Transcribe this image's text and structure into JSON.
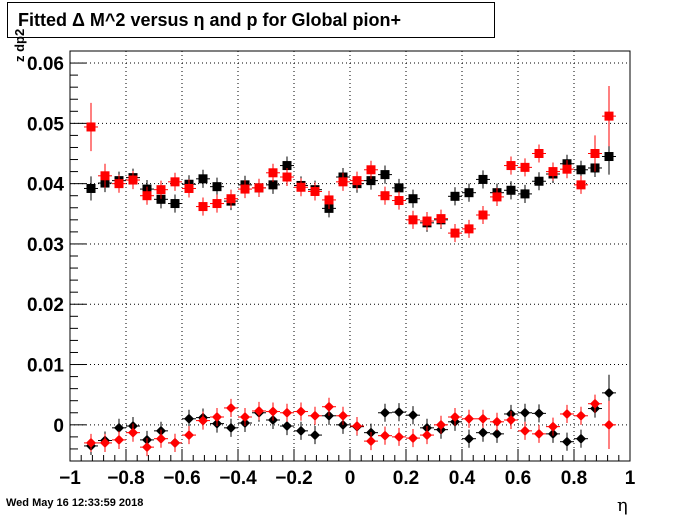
{
  "chart_data": {
    "type": "scatter",
    "title": "Fitted Δ M^2 versus η and p for Global pion+",
    "xlabel": "η",
    "ylabel": "z dp2",
    "xlim": [
      -1,
      1
    ],
    "ylim": [
      -0.006,
      0.062
    ],
    "grid": true,
    "x_ticks": [
      -1,
      -0.8,
      -0.6,
      -0.4,
      -0.2,
      0,
      0.2,
      0.4,
      0.6,
      0.8,
      1
    ],
    "x_tick_labels": [
      "−1",
      "−0.8",
      "−0.6",
      "−0.4",
      "−0.2",
      "0",
      "0.2",
      "0.4",
      "0.6",
      "0.8",
      "1"
    ],
    "y_ticks": [
      0,
      0.01,
      0.02,
      0.03,
      0.04,
      0.05,
      0.06
    ],
    "y_tick_labels": [
      "0",
      "0.01",
      "0.02",
      "0.03",
      "0.04",
      "0.05",
      "0.06"
    ],
    "series": [
      {
        "marker": "square",
        "color": "#000000",
        "x": [
          -0.925,
          -0.875,
          -0.825,
          -0.775,
          -0.725,
          -0.675,
          -0.625,
          -0.575,
          -0.525,
          -0.475,
          -0.425,
          -0.375,
          -0.325,
          -0.275,
          -0.225,
          -0.175,
          -0.125,
          -0.075,
          -0.025,
          0.025,
          0.075,
          0.125,
          0.175,
          0.225,
          0.275,
          0.325,
          0.375,
          0.425,
          0.475,
          0.525,
          0.575,
          0.625,
          0.675,
          0.725,
          0.775,
          0.825,
          0.875,
          0.925
        ],
        "y": [
          0.0392,
          0.0401,
          0.0405,
          0.041,
          0.0391,
          0.0374,
          0.0367,
          0.0399,
          0.0408,
          0.0395,
          0.0371,
          0.0398,
          0.0393,
          0.0398,
          0.043,
          0.0397,
          0.039,
          0.0359,
          0.0411,
          0.04,
          0.0405,
          0.0415,
          0.0393,
          0.0375,
          0.0335,
          0.034,
          0.0379,
          0.0385,
          0.0407,
          0.0385,
          0.0389,
          0.0383,
          0.0404,
          0.0416,
          0.0433,
          0.0423,
          0.0426,
          0.0445
        ],
        "err": [
          0.002,
          0.0015,
          0.0015,
          0.0015,
          0.0015,
          0.0015,
          0.0015,
          0.0015,
          0.0015,
          0.0015,
          0.0015,
          0.0015,
          0.0015,
          0.0015,
          0.0015,
          0.0015,
          0.0015,
          0.0015,
          0.0015,
          0.0015,
          0.0015,
          0.0015,
          0.0015,
          0.0015,
          0.0015,
          0.0015,
          0.0015,
          0.0015,
          0.0015,
          0.0015,
          0.0015,
          0.0015,
          0.0015,
          0.0015,
          0.0015,
          0.0015,
          0.0015,
          0.003
        ]
      },
      {
        "marker": "square",
        "color": "#ff0000",
        "x": [
          -0.925,
          -0.875,
          -0.825,
          -0.775,
          -0.725,
          -0.675,
          -0.625,
          -0.575,
          -0.525,
          -0.475,
          -0.425,
          -0.375,
          -0.325,
          -0.275,
          -0.225,
          -0.175,
          -0.125,
          -0.075,
          -0.025,
          0.025,
          0.075,
          0.125,
          0.175,
          0.225,
          0.275,
          0.325,
          0.375,
          0.425,
          0.475,
          0.525,
          0.575,
          0.625,
          0.675,
          0.725,
          0.775,
          0.825,
          0.875,
          0.925
        ],
        "y": [
          0.0494,
          0.0413,
          0.04,
          0.0406,
          0.038,
          0.039,
          0.0403,
          0.0392,
          0.0362,
          0.0367,
          0.0375,
          0.0391,
          0.0393,
          0.0418,
          0.0411,
          0.0394,
          0.0387,
          0.0373,
          0.0403,
          0.0405,
          0.0423,
          0.038,
          0.0372,
          0.034,
          0.0338,
          0.0342,
          0.0318,
          0.0325,
          0.0348,
          0.0378,
          0.043,
          0.0427,
          0.045,
          0.042,
          0.0424,
          0.0398,
          0.045,
          0.0512
        ],
        "err": [
          0.004,
          0.002,
          0.0015,
          0.0015,
          0.0015,
          0.0015,
          0.0015,
          0.0015,
          0.0015,
          0.0015,
          0.0015,
          0.0015,
          0.0015,
          0.0015,
          0.0015,
          0.0015,
          0.0015,
          0.0015,
          0.0015,
          0.0015,
          0.0015,
          0.0015,
          0.0015,
          0.0015,
          0.0015,
          0.0015,
          0.0015,
          0.0015,
          0.0015,
          0.0015,
          0.0015,
          0.0015,
          0.0015,
          0.0015,
          0.0015,
          0.0015,
          0.003,
          0.005
        ]
      },
      {
        "marker": "diamond",
        "color": "#000000",
        "x": [
          -0.925,
          -0.875,
          -0.825,
          -0.775,
          -0.725,
          -0.675,
          -0.625,
          -0.575,
          -0.525,
          -0.475,
          -0.425,
          -0.375,
          -0.325,
          -0.275,
          -0.225,
          -0.175,
          -0.125,
          -0.075,
          -0.025,
          0.025,
          0.075,
          0.125,
          0.175,
          0.225,
          0.275,
          0.325,
          0.375,
          0.425,
          0.475,
          0.525,
          0.575,
          0.625,
          0.675,
          0.725,
          0.775,
          0.825,
          0.875,
          0.925
        ],
        "y": [
          -0.0035,
          -0.0026,
          -0.0005,
          -0.0002,
          -0.0025,
          -0.001,
          -0.003,
          0.001,
          0.0012,
          0.0002,
          -0.0005,
          0.0003,
          0.002,
          0.0008,
          -0.0002,
          -0.001,
          -0.0017,
          0.0015,
          0.0,
          -0.0003,
          -0.0013,
          0.002,
          0.0021,
          0.0016,
          -0.0005,
          -0.0008,
          0.0005,
          -0.0023,
          -0.0013,
          -0.0015,
          0.0018,
          0.002,
          0.0019,
          -0.0015,
          -0.0028,
          -0.0023,
          0.0027,
          0.0053
        ],
        "err": [
          0.0015,
          0.0015,
          0.0015,
          0.0015,
          0.0015,
          0.0015,
          0.0015,
          0.0015,
          0.0015,
          0.0015,
          0.0015,
          0.0015,
          0.0015,
          0.0015,
          0.0015,
          0.0015,
          0.0015,
          0.0015,
          0.0015,
          0.0015,
          0.0015,
          0.0015,
          0.0015,
          0.0015,
          0.0015,
          0.0015,
          0.0015,
          0.0015,
          0.0015,
          0.0015,
          0.0015,
          0.0015,
          0.0015,
          0.0015,
          0.0015,
          0.0015,
          0.0015,
          0.003
        ]
      },
      {
        "marker": "diamond",
        "color": "#ff0000",
        "x": [
          -0.925,
          -0.875,
          -0.825,
          -0.775,
          -0.725,
          -0.675,
          -0.625,
          -0.575,
          -0.525,
          -0.475,
          -0.425,
          -0.375,
          -0.325,
          -0.275,
          -0.225,
          -0.175,
          -0.125,
          -0.075,
          -0.025,
          0.025,
          0.075,
          0.125,
          0.175,
          0.225,
          0.275,
          0.325,
          0.375,
          0.425,
          0.475,
          0.525,
          0.575,
          0.625,
          0.675,
          0.725,
          0.775,
          0.825,
          0.875,
          0.925
        ],
        "y": [
          -0.003,
          -0.003,
          -0.0025,
          -0.0013,
          -0.0037,
          -0.0023,
          -0.003,
          -0.0017,
          0.0007,
          0.0013,
          0.0028,
          0.0013,
          0.0023,
          0.0022,
          0.002,
          0.0022,
          0.0015,
          0.003,
          0.0015,
          -0.0002,
          -0.0027,
          -0.0018,
          -0.002,
          -0.0022,
          -0.0017,
          0.0,
          0.0013,
          0.001,
          0.001,
          0.0005,
          0.0008,
          -0.001,
          -0.0015,
          -0.0003,
          0.0018,
          0.0015,
          0.0035,
          0.0
        ],
        "err": [
          0.0015,
          0.0015,
          0.0015,
          0.0015,
          0.0015,
          0.0015,
          0.0015,
          0.0015,
          0.0015,
          0.0015,
          0.0015,
          0.0015,
          0.0015,
          0.0015,
          0.0015,
          0.0015,
          0.0015,
          0.0015,
          0.0015,
          0.0015,
          0.0015,
          0.0015,
          0.0015,
          0.0015,
          0.0015,
          0.0015,
          0.0015,
          0.0015,
          0.0015,
          0.0015,
          0.0015,
          0.0015,
          0.0015,
          0.0015,
          0.0015,
          0.0015,
          0.0015,
          0.004
        ]
      }
    ]
  },
  "footer": {
    "timestamp": "Wed May 16 12:33:59 2018"
  }
}
